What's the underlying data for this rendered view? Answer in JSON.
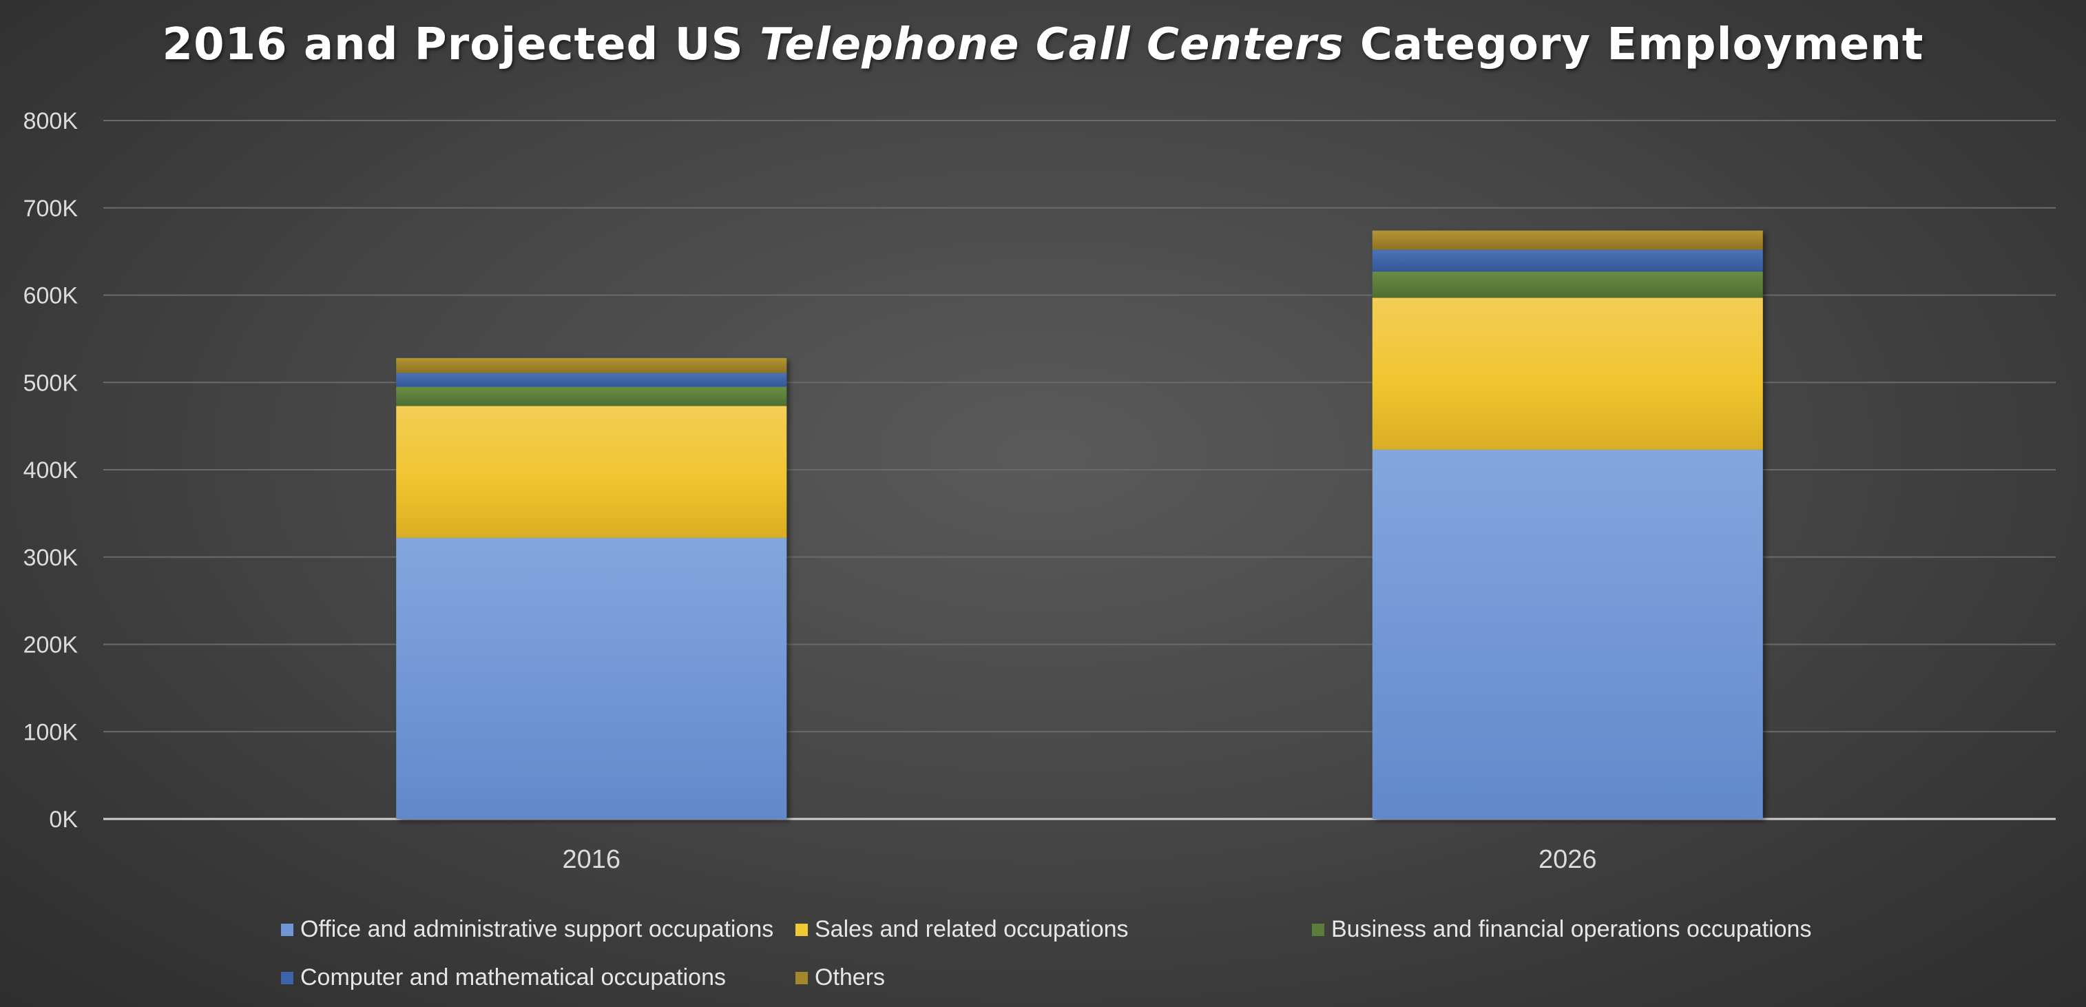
{
  "title": {
    "part1": "2016 and Projected US ",
    "part2": "Telephone Call Centers",
    "part3": " Category Employment"
  },
  "chart_data": {
    "type": "bar",
    "stacked": true,
    "title": "2016 and Projected US Telephone Call Centers Category Employment",
    "categories": [
      "2016",
      "2026"
    ],
    "ylim": [
      0,
      800000
    ],
    "yticks": [
      0,
      100000,
      200000,
      300000,
      400000,
      500000,
      600000,
      700000,
      800000
    ],
    "ytick_labels": [
      "0K",
      "100K",
      "200K",
      "300K",
      "400K",
      "500K",
      "600K",
      "700K",
      "800K"
    ],
    "grid": true,
    "legend_position": "bottom",
    "series": [
      {
        "name": "Office and administrative support occupations",
        "color": "#6f97d6",
        "values": [
          322000,
          423000
        ]
      },
      {
        "name": "Sales and related occupations",
        "color": "#f0c832",
        "values": [
          151000,
          174000
        ]
      },
      {
        "name": "Business and financial operations occupations",
        "color": "#5a7d3a",
        "values": [
          22000,
          30000
        ]
      },
      {
        "name": "Computer and mathematical occupations",
        "color": "#3d64a8",
        "values": [
          16000,
          25000
        ]
      },
      {
        "name": "Others",
        "color": "#a4872a",
        "values": [
          17000,
          22000
        ]
      }
    ]
  }
}
